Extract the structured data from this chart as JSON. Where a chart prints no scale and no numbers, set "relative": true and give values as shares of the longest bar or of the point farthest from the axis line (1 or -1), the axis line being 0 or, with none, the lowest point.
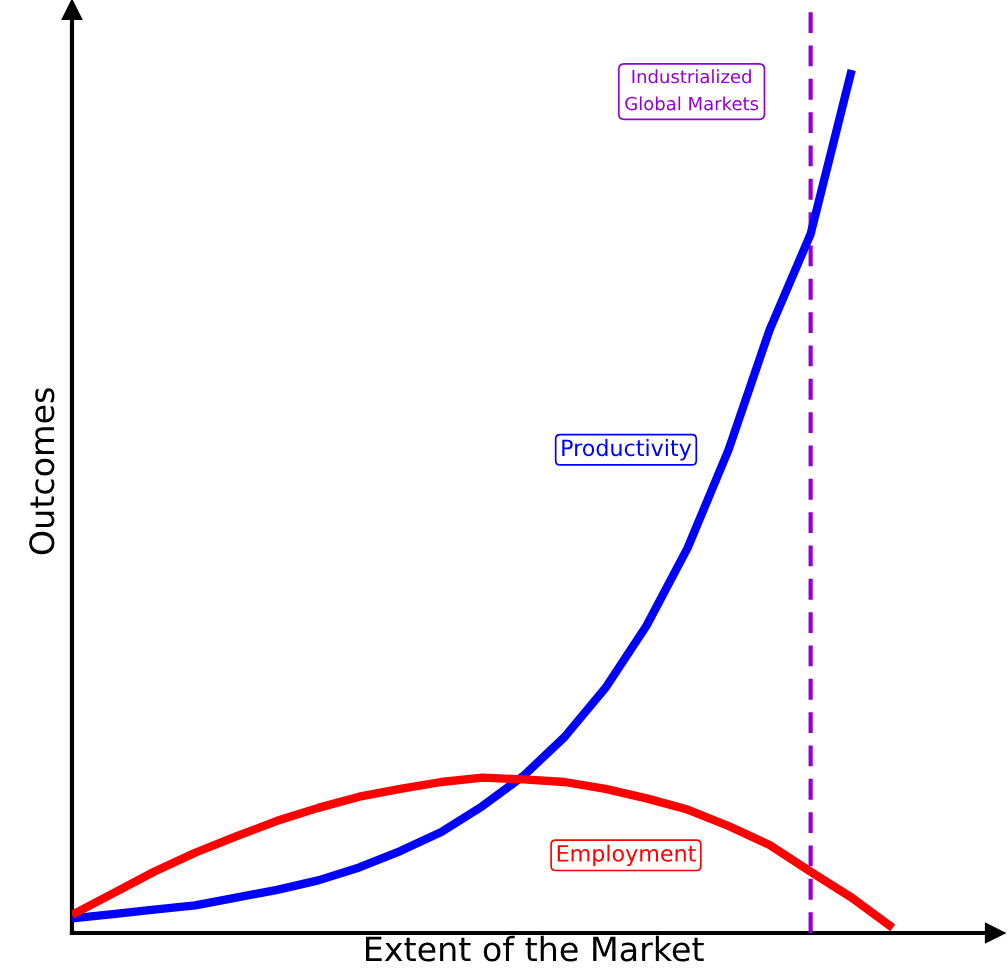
{
  "chart_data": {
    "type": "line",
    "relative": true,
    "xlabel": "Extent of the Market",
    "ylabel": "Outcomes",
    "categories": [
      null,
      null,
      null,
      null,
      null,
      null,
      null,
      null,
      null,
      null,
      null,
      null,
      null,
      null,
      null,
      null,
      null,
      null,
      null,
      null,
      null
    ],
    "series": [
      {
        "name": "Productivity",
        "color": "#0000ff",
        "values": [
          0.017,
          0.022,
          0.027,
          0.032,
          0.041,
          0.05,
          0.061,
          0.076,
          0.095,
          0.117,
          0.147,
          0.182,
          0.227,
          0.284,
          0.356,
          0.446,
          0.56,
          0.699,
          0.81,
          1.0,
          null
        ]
      },
      {
        "name": "Employment",
        "color": "#ff0000",
        "values": [
          0.021,
          0.046,
          0.071,
          0.093,
          0.112,
          0.13,
          0.145,
          0.158,
          0.167,
          0.175,
          0.18,
          0.178,
          0.175,
          0.167,
          0.156,
          0.143,
          0.124,
          0.102,
          0.071,
          0.041,
          0.006
        ]
      }
    ],
    "annotations": [
      "Industrialized\nGlobal Markets"
    ],
    "legend": false,
    "tick_labels": false,
    "marker": "none",
    "line_style": "solid"
  }
}
